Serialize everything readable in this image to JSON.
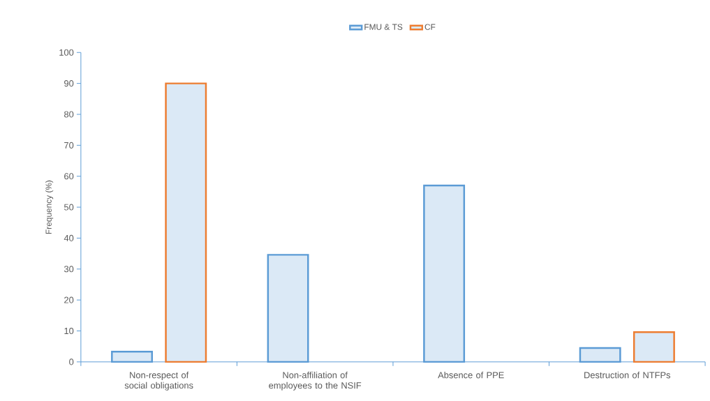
{
  "chart_data": {
    "type": "bar",
    "ylabel": "Frequency (%)",
    "categories": [
      "Non-respect of social obligations",
      "Non-affiliation of employees to the NSIF",
      "Absence of PPE",
      "Destruction of NTFPs"
    ],
    "series": [
      {
        "name": "FMU & TS",
        "color": "#5b9bd5",
        "values": [
          3.3,
          34.6,
          57,
          4.5
        ]
      },
      {
        "name": "CF",
        "color": "#ed7d31",
        "values": [
          90,
          null,
          null,
          9.6
        ]
      }
    ],
    "ylim": [
      0,
      100
    ],
    "yticks": [
      0,
      10,
      20,
      30,
      40,
      50,
      60,
      70,
      80,
      90,
      100
    ],
    "grid": false,
    "legend": "top"
  }
}
